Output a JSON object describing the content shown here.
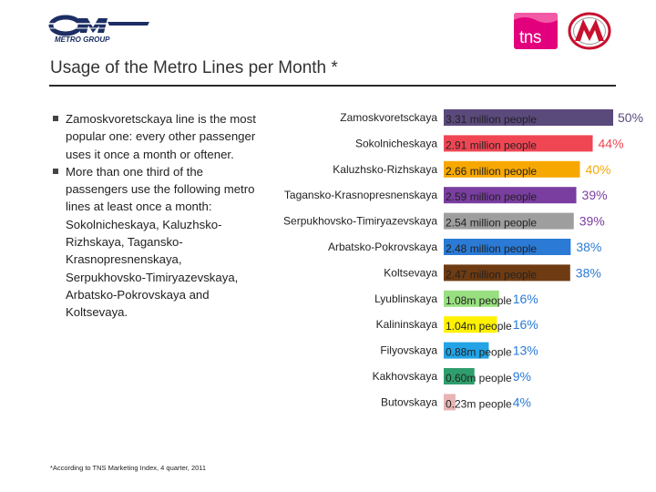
{
  "header": {
    "title": "Usage of the Metro Lines per Month *"
  },
  "logos": {
    "left": "OM Metro Group logo",
    "tns": "tns",
    "metro": "Moscow Metro logo"
  },
  "notes": {
    "bullet1": {
      "lead": "Zamoskvoretsckaya line is the most popular one:",
      "emph": "every other passenger uses it once a month or oftener."
    },
    "bullet2": {
      "lead": "More than one third of the passengers use the following metro lines at least once a month:",
      "lines": "Sokolnicheskaya, Kaluzhsko-Rizhskaya, Tagansko-Krasnopresnenskaya, Serpukhovsko-Timiryazevskaya, Arbatsko-Pokrovskaya and Koltsevaya."
    }
  },
  "footnote": "*According to TNS Marketing Index, 4 quarter, 2011",
  "chart_data": {
    "type": "bar",
    "orientation": "horizontal",
    "categories": [
      "Zamoskvoretsckaya",
      "Sokolnicheskaya",
      "Kaluzhsko-Rizhskaya",
      "Tagansko-Krasnopresnenskaya",
      "Serpukhovsko-Timiryazevskaya",
      "Arbatsko-Pokrovskaya",
      "Koltsevaya",
      "Lyublinskaya",
      "Kalininskaya",
      "Filyovskaya",
      "Kakhovskaya",
      "Butovskaya"
    ],
    "values": [
      3.31,
      2.91,
      2.66,
      2.59,
      2.54,
      2.48,
      2.47,
      1.08,
      1.04,
      0.88,
      0.6,
      0.23
    ],
    "value_labels": [
      "3.31 million people",
      "2.91 million people",
      "2.66 million people",
      "2.59 million people",
      "2.54 million people",
      "2.48 million people",
      "2.47 million people",
      "1.08m people",
      "1.04m people",
      "0.88m people",
      "0.60m people",
      "0.23m people"
    ],
    "percent_labels": [
      "50%",
      "44%",
      "40%",
      "39%",
      "39%",
      "38%",
      "38%",
      "16%",
      "16%",
      "13%",
      "9%",
      "4%"
    ],
    "colors": [
      "#5a4a7c",
      "#f04654",
      "#f7a800",
      "#7a3da0",
      "#9e9e9e",
      "#2a7ad6",
      "#6e3b12",
      "#98e07f",
      "#fff200",
      "#22a3e6",
      "#2e9e6c",
      "#e8b4b4"
    ],
    "percent_colors": [
      "#5a4a7c",
      "#f04654",
      "#f7a800",
      "#7a3da0",
      "#7a3da0",
      "#2a7ad6",
      "#2a7ad6",
      "#2a7ad6",
      "#2a7ad6",
      "#2a7ad6",
      "#2a7ad6",
      "#2a7ad6"
    ],
    "grid": false,
    "legend": "none"
  }
}
